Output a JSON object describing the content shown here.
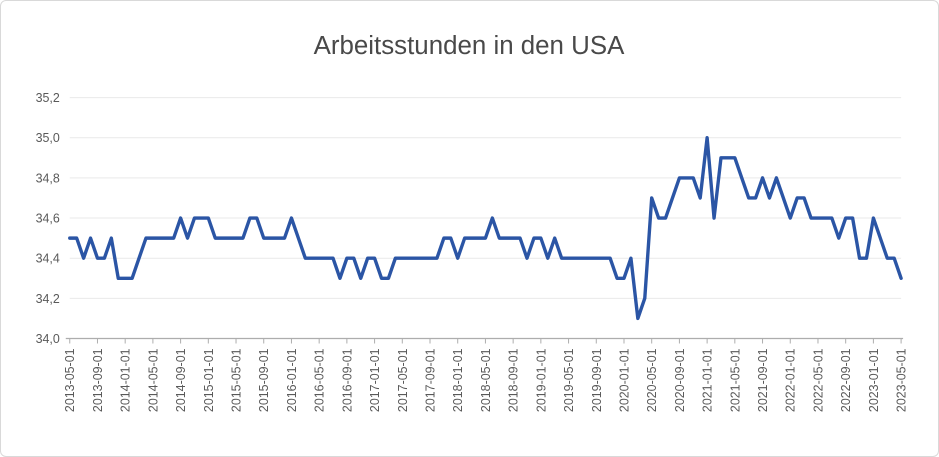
{
  "chart_data": {
    "type": "line",
    "title": "Arbeitsstunden in den USA",
    "x": [
      "2013-05-01",
      "2013-06-01",
      "2013-07-01",
      "2013-08-01",
      "2013-09-01",
      "2013-10-01",
      "2013-11-01",
      "2013-12-01",
      "2014-01-01",
      "2014-02-01",
      "2014-03-01",
      "2014-04-01",
      "2014-05-01",
      "2014-06-01",
      "2014-07-01",
      "2014-08-01",
      "2014-09-01",
      "2014-10-01",
      "2014-11-01",
      "2014-12-01",
      "2015-01-01",
      "2015-02-01",
      "2015-03-01",
      "2015-04-01",
      "2015-05-01",
      "2015-06-01",
      "2015-07-01",
      "2015-08-01",
      "2015-09-01",
      "2015-10-01",
      "2015-11-01",
      "2015-12-01",
      "2016-01-01",
      "2016-02-01",
      "2016-03-01",
      "2016-04-01",
      "2016-05-01",
      "2016-06-01",
      "2016-07-01",
      "2016-08-01",
      "2016-09-01",
      "2016-10-01",
      "2016-11-01",
      "2016-12-01",
      "2017-01-01",
      "2017-02-01",
      "2017-03-01",
      "2017-04-01",
      "2017-05-01",
      "2017-06-01",
      "2017-07-01",
      "2017-08-01",
      "2017-09-01",
      "2017-10-01",
      "2017-11-01",
      "2017-12-01",
      "2018-01-01",
      "2018-02-01",
      "2018-03-01",
      "2018-04-01",
      "2018-05-01",
      "2018-06-01",
      "2018-07-01",
      "2018-08-01",
      "2018-09-01",
      "2018-10-01",
      "2018-11-01",
      "2018-12-01",
      "2019-01-01",
      "2019-02-01",
      "2019-03-01",
      "2019-04-01",
      "2019-05-01",
      "2019-06-01",
      "2019-07-01",
      "2019-08-01",
      "2019-09-01",
      "2019-10-01",
      "2019-11-01",
      "2019-12-01",
      "2020-01-01",
      "2020-02-01",
      "2020-03-01",
      "2020-04-01",
      "2020-05-01",
      "2020-06-01",
      "2020-07-01",
      "2020-08-01",
      "2020-09-01",
      "2020-10-01",
      "2020-11-01",
      "2020-12-01",
      "2021-01-01",
      "2021-02-01",
      "2021-03-01",
      "2021-04-01",
      "2021-05-01",
      "2021-06-01",
      "2021-07-01",
      "2021-08-01",
      "2021-09-01",
      "2021-10-01",
      "2021-11-01",
      "2021-12-01",
      "2022-01-01",
      "2022-02-01",
      "2022-03-01",
      "2022-04-01",
      "2022-05-01",
      "2022-06-01",
      "2022-07-01",
      "2022-08-01",
      "2022-09-01",
      "2022-10-01",
      "2022-11-01",
      "2022-12-01",
      "2023-01-01",
      "2023-02-01",
      "2023-03-01",
      "2023-04-01",
      "2023-05-01"
    ],
    "values": [
      34.5,
      34.5,
      34.4,
      34.5,
      34.4,
      34.4,
      34.5,
      34.3,
      34.3,
      34.3,
      34.4,
      34.5,
      34.5,
      34.5,
      34.5,
      34.5,
      34.6,
      34.5,
      34.6,
      34.6,
      34.6,
      34.5,
      34.5,
      34.5,
      34.5,
      34.5,
      34.6,
      34.6,
      34.5,
      34.5,
      34.5,
      34.5,
      34.6,
      34.5,
      34.4,
      34.4,
      34.4,
      34.4,
      34.4,
      34.3,
      34.4,
      34.4,
      34.3,
      34.4,
      34.4,
      34.3,
      34.3,
      34.4,
      34.4,
      34.4,
      34.4,
      34.4,
      34.4,
      34.4,
      34.5,
      34.5,
      34.4,
      34.5,
      34.5,
      34.5,
      34.5,
      34.6,
      34.5,
      34.5,
      34.5,
      34.5,
      34.4,
      34.5,
      34.5,
      34.4,
      34.5,
      34.4,
      34.4,
      34.4,
      34.4,
      34.4,
      34.4,
      34.4,
      34.4,
      34.3,
      34.3,
      34.4,
      34.1,
      34.2,
      34.7,
      34.6,
      34.6,
      34.7,
      34.8,
      34.8,
      34.8,
      34.7,
      35.0,
      34.6,
      34.9,
      34.9,
      34.9,
      34.8,
      34.7,
      34.7,
      34.8,
      34.7,
      34.8,
      34.7,
      34.6,
      34.7,
      34.7,
      34.6,
      34.6,
      34.6,
      34.6,
      34.5,
      34.6,
      34.6,
      34.4,
      34.4,
      34.6,
      34.5,
      34.4,
      34.4,
      34.3
    ],
    "ylim": [
      34.0,
      35.2
    ],
    "ytick_step": 0.2,
    "ytick_labels": [
      "34,0",
      "34,2",
      "34,4",
      "34,6",
      "34,8",
      "35,0",
      "35,2"
    ],
    "xtick_every": 4,
    "grid": true,
    "legend": "none",
    "colors": {
      "line": "#2b55a5",
      "grid": "#e9e9e9",
      "axis": "#adadad",
      "tick_text": "#595959",
      "title_text": "#494949",
      "frame_border": "#d9d9d9"
    }
  }
}
